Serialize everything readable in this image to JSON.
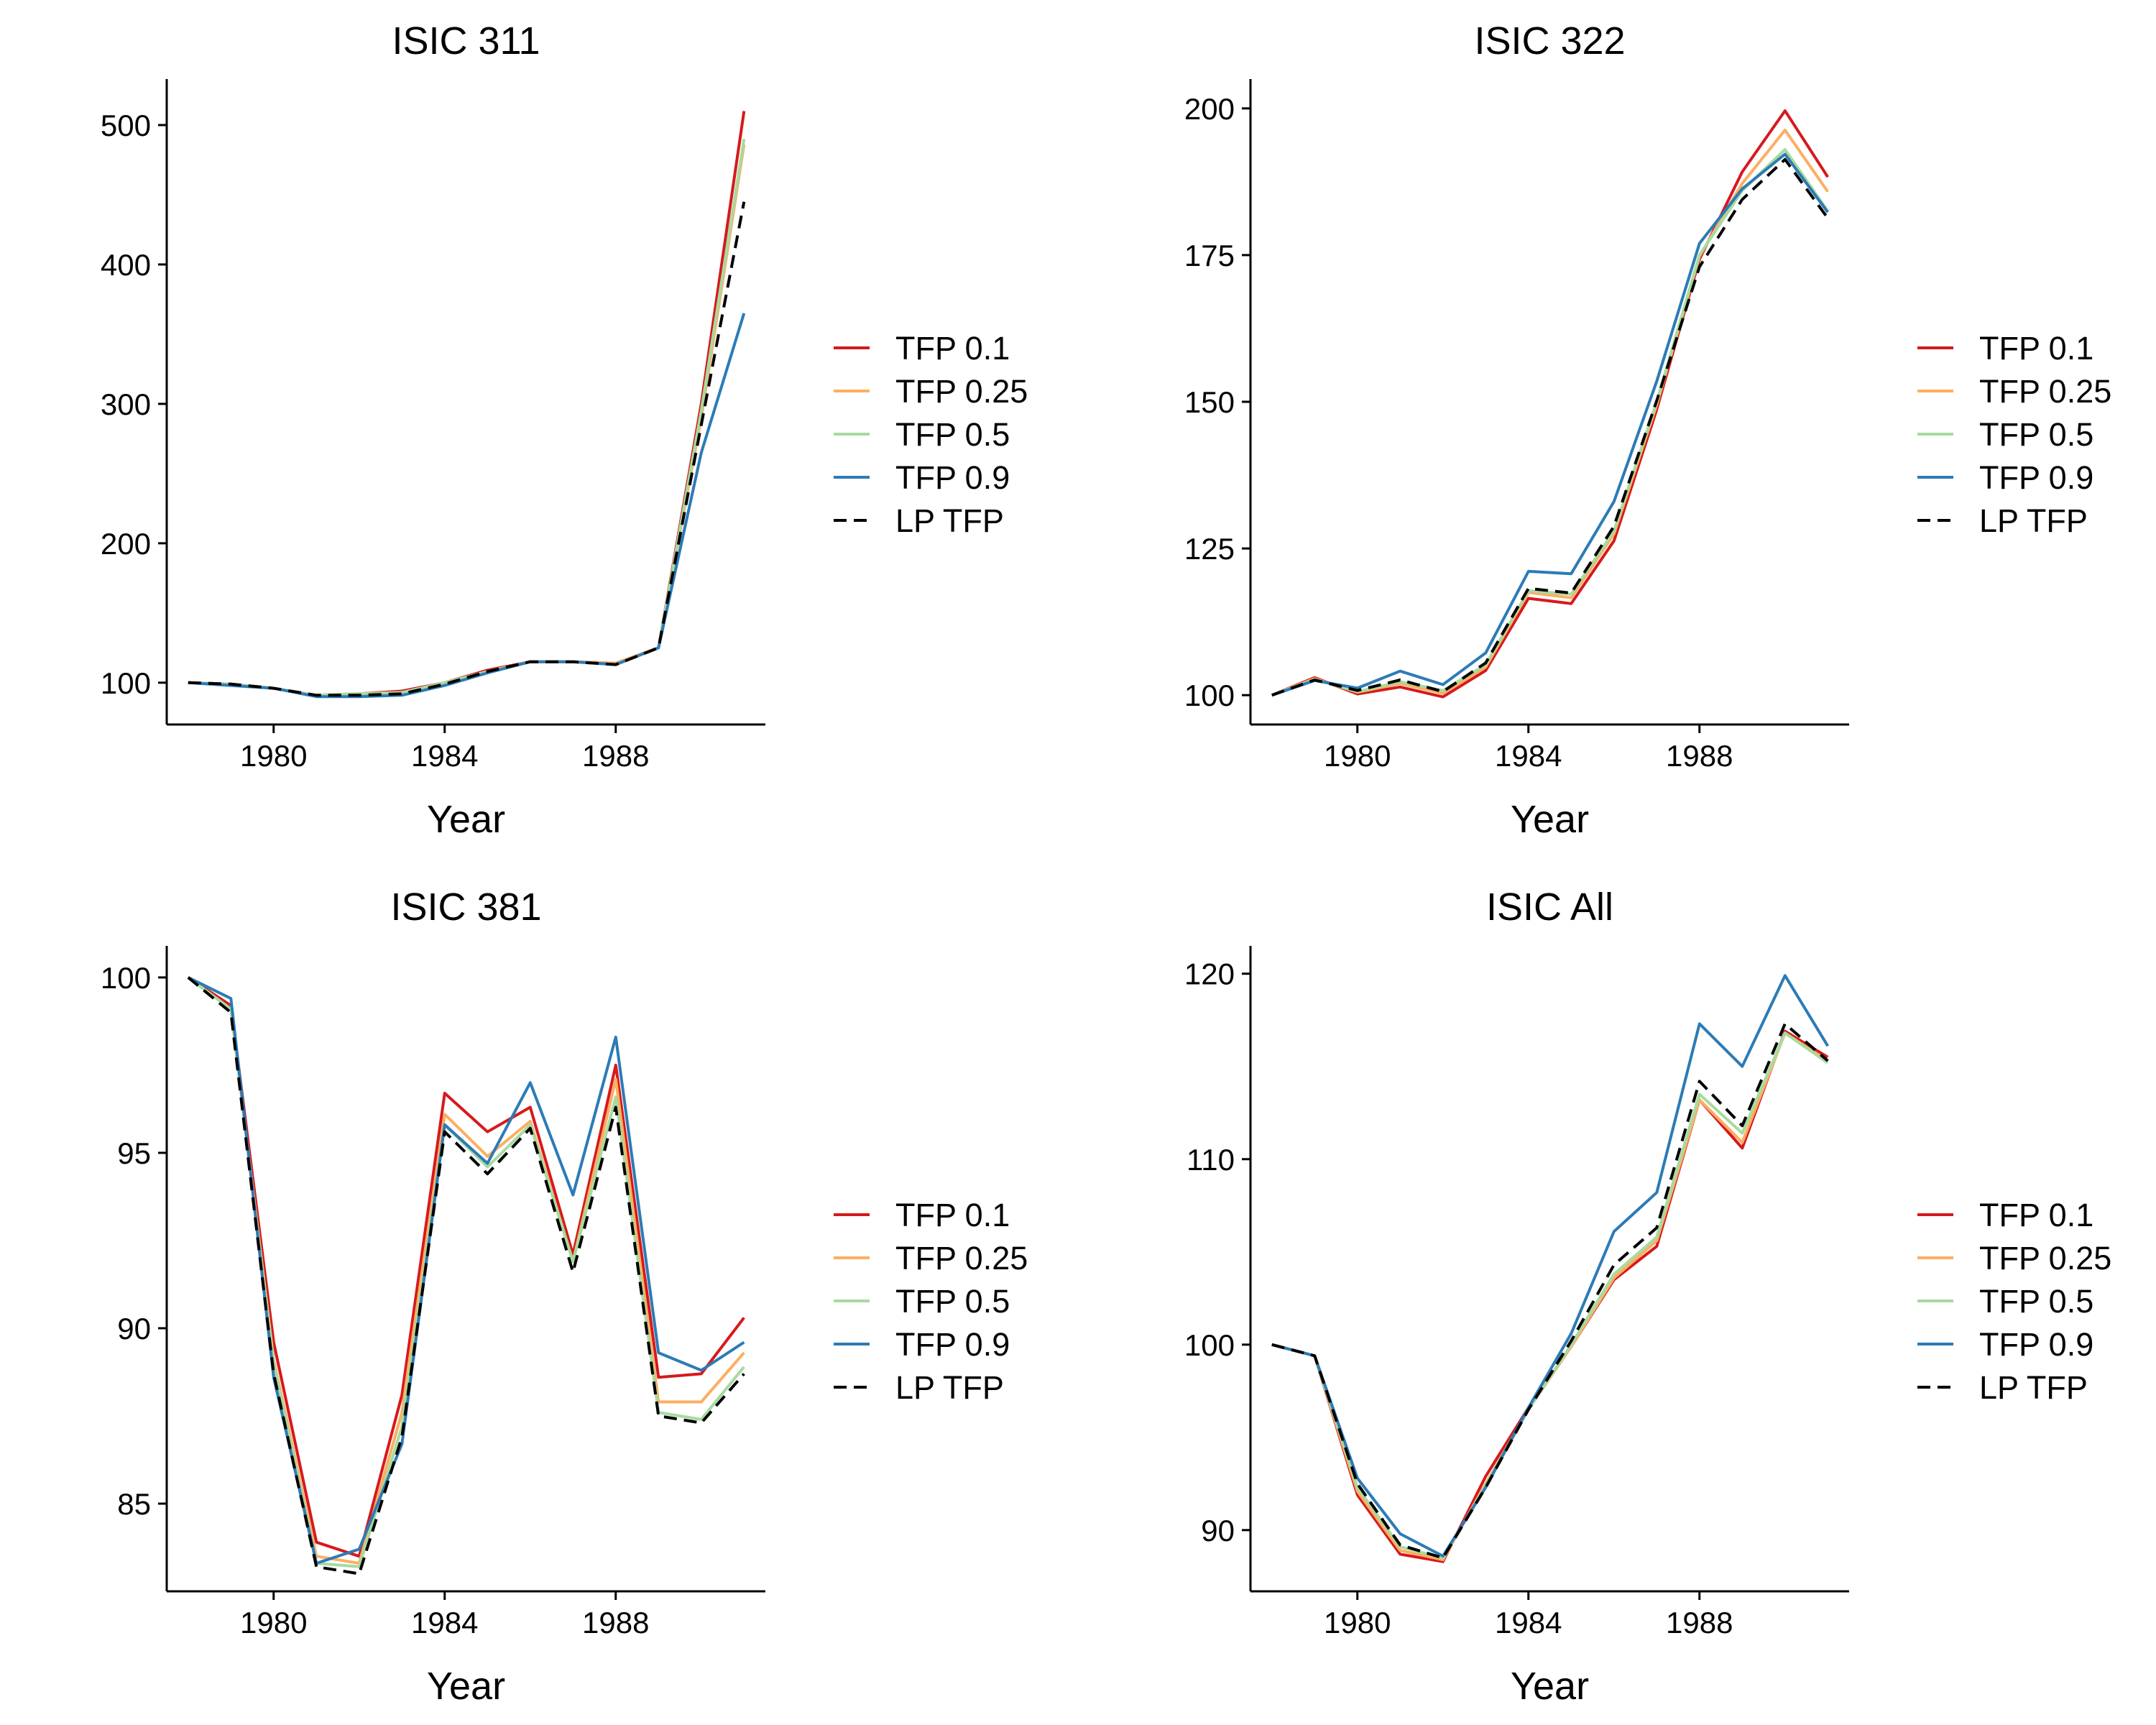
{
  "chart_data": [
    {
      "type": "line",
      "title": "ISIC 311",
      "xlabel": "Year",
      "ylabel": "",
      "xlim": [
        1977.5,
        1991.5
      ],
      "ylim": [
        70,
        533
      ],
      "xticks": [
        1980,
        1984,
        1988
      ],
      "yticks": [
        100,
        200,
        300,
        400,
        500
      ],
      "legend_position": "right",
      "grid": false,
      "x": [
        1978,
        1979,
        1980,
        1981,
        1982,
        1983,
        1984,
        1985,
        1986,
        1987,
        1988,
        1989,
        1990,
        1991
      ],
      "series": [
        {
          "name": "TFP 0.1",
          "color": "#d7191c",
          "dash": "solid",
          "values": [
            100,
            99,
            96,
            91,
            92,
            94,
            100,
            109,
            115,
            115,
            114,
            125,
            300,
            510
          ]
        },
        {
          "name": "TFP 0.25",
          "color": "#fdae61",
          "dash": "solid",
          "values": [
            100,
            99,
            96,
            91,
            92,
            93,
            100,
            108,
            115,
            115,
            114,
            125,
            290,
            486
          ]
        },
        {
          "name": "TFP 0.5",
          "color": "#a6dba0",
          "dash": "solid",
          "values": [
            100,
            99,
            96,
            91,
            92,
            93,
            100,
            108,
            115,
            115,
            113,
            125,
            295,
            490
          ]
        },
        {
          "name": "TFP 0.9",
          "color": "#2c7bb6",
          "dash": "solid",
          "values": [
            100,
            98,
            96,
            90,
            90,
            91,
            98,
            107,
            115,
            115,
            113,
            125,
            265,
            365
          ]
        },
        {
          "name": "LP TFP",
          "color": "#000000",
          "dash": "dashed",
          "values": [
            100,
            99,
            96,
            91,
            91,
            92,
            99,
            108,
            115,
            115,
            113,
            125,
            285,
            445
          ]
        }
      ]
    },
    {
      "type": "line",
      "title": "ISIC 322",
      "xlabel": "Year",
      "ylabel": "",
      "xlim": [
        1977.5,
        1991.5
      ],
      "ylim": [
        95,
        205
      ],
      "xticks": [
        1980,
        1984,
        1988
      ],
      "yticks": [
        100,
        125,
        150,
        175,
        200
      ],
      "legend_position": "right",
      "grid": false,
      "x": [
        1978,
        1979,
        1980,
        1981,
        1982,
        1983,
        1984,
        1985,
        1986,
        1987,
        1988,
        1989,
        1990,
        1991
      ],
      "series": [
        {
          "name": "TFP 0.1",
          "color": "#d7191c",
          "dash": "solid",
          "values": [
            100,
            103,
            100.2,
            101.4,
            99.7,
            104.2,
            116.5,
            115.6,
            126.3,
            148.7,
            174.3,
            189.2,
            199.6,
            188.3
          ]
        },
        {
          "name": "TFP 0.25",
          "color": "#fdae61",
          "dash": "solid",
          "values": [
            100,
            102.8,
            100.5,
            102,
            100.3,
            104.8,
            117.5,
            116.6,
            127.5,
            149.5,
            174.8,
            187.2,
            196.3,
            185.8
          ]
        },
        {
          "name": "TFP 0.5",
          "color": "#a6dba0",
          "dash": "solid",
          "values": [
            100,
            102.7,
            100.6,
            102.3,
            100.8,
            105.2,
            117.8,
            117.2,
            128,
            150,
            175,
            186,
            193,
            182.5
          ]
        },
        {
          "name": "TFP 0.9",
          "color": "#2c7bb6",
          "dash": "solid",
          "values": [
            100,
            102.5,
            101.2,
            104.1,
            101.8,
            107.2,
            121.1,
            120.7,
            133,
            153.5,
            177,
            186.3,
            192.2,
            182.3
          ]
        },
        {
          "name": "LP TFP",
          "color": "#000000",
          "dash": "dashed",
          "values": [
            100,
            102.6,
            100.8,
            102.6,
            100.6,
            105.5,
            118.2,
            117.4,
            128.8,
            150.2,
            173,
            184.5,
            191.3,
            181.3
          ]
        }
      ]
    },
    {
      "type": "line",
      "title": "ISIC 381",
      "xlabel": "Year",
      "ylabel": "",
      "xlim": [
        1977.5,
        1991.5
      ],
      "ylim": [
        82.5,
        100.9
      ],
      "xticks": [
        1980,
        1984,
        1988
      ],
      "yticks": [
        85,
        90,
        95,
        100
      ],
      "legend_position": "right",
      "grid": false,
      "x": [
        1978,
        1979,
        1980,
        1981,
        1982,
        1983,
        1984,
        1985,
        1986,
        1987,
        1988,
        1989,
        1990,
        1991
      ],
      "series": [
        {
          "name": "TFP 0.1",
          "color": "#d7191c",
          "dash": "solid",
          "values": [
            100,
            99.2,
            89.6,
            83.9,
            83.5,
            88.1,
            96.7,
            95.6,
            96.3,
            92.1,
            97.5,
            88.6,
            88.7,
            90.3
          ]
        },
        {
          "name": "TFP 0.25",
          "color": "#fdae61",
          "dash": "solid",
          "values": [
            100,
            99.1,
            89.1,
            83.5,
            83.3,
            87.6,
            96.1,
            94.9,
            95.9,
            91.9,
            97.1,
            87.9,
            87.9,
            89.3
          ]
        },
        {
          "name": "TFP 0.5",
          "color": "#a6dba0",
          "dash": "solid",
          "values": [
            100,
            99.1,
            89,
            83.3,
            83.2,
            87.2,
            95.8,
            94.6,
            95.8,
            91.9,
            96.6,
            87.6,
            87.4,
            88.9
          ]
        },
        {
          "name": "TFP 0.9",
          "color": "#2c7bb6",
          "dash": "solid",
          "values": [
            100,
            99.4,
            88.6,
            83.3,
            83.7,
            86.7,
            95.8,
            94.7,
            97,
            93.8,
            98.3,
            89.3,
            88.8,
            89.6
          ]
        },
        {
          "name": "LP TFP",
          "color": "#000000",
          "dash": "dashed",
          "values": [
            100,
            99,
            88.7,
            83.2,
            83,
            86.9,
            95.6,
            94.4,
            95.7,
            91.6,
            96.3,
            87.5,
            87.3,
            88.7
          ]
        }
      ]
    },
    {
      "type": "line",
      "title": "ISIC All",
      "xlabel": "Year",
      "ylabel": "",
      "xlim": [
        1977.5,
        1991.5
      ],
      "ylim": [
        86.7,
        121.5
      ],
      "xticks": [
        1980,
        1984,
        1988
      ],
      "yticks": [
        90,
        100,
        110,
        120
      ],
      "legend_position": "right",
      "grid": false,
      "x": [
        1978,
        1979,
        1980,
        1981,
        1982,
        1983,
        1984,
        1985,
        1986,
        1987,
        1988,
        1989,
        1990,
        1991
      ],
      "series": [
        {
          "name": "TFP 0.1",
          "color": "#d7191c",
          "dash": "solid",
          "values": [
            100,
            99.4,
            91.9,
            88.7,
            88.3,
            92.9,
            96.6,
            99.9,
            103.5,
            105.3,
            113.2,
            110.6,
            116.9,
            115.5
          ]
        },
        {
          "name": "TFP 0.25",
          "color": "#fdae61",
          "dash": "solid",
          "values": [
            100,
            99.4,
            92.1,
            88.9,
            88.4,
            92.5,
            96.5,
            99.9,
            103.6,
            105.6,
            113.2,
            110.9,
            116.8,
            115.3
          ]
        },
        {
          "name": "TFP 0.5",
          "color": "#a6dba0",
          "dash": "solid",
          "values": [
            100,
            99.4,
            92.3,
            89.1,
            88.5,
            92.4,
            96.5,
            100,
            103.8,
            105.8,
            113.5,
            111.4,
            116.8,
            115.2
          ]
        },
        {
          "name": "TFP 0.9",
          "color": "#2c7bb6",
          "dash": "solid",
          "values": [
            100,
            99.4,
            92.8,
            89.8,
            88.6,
            92.3,
            96.6,
            100.6,
            106.1,
            108.2,
            117.3,
            115,
            119.9,
            116.1
          ]
        },
        {
          "name": "LP TFP",
          "color": "#000000",
          "dash": "dashed",
          "values": [
            100,
            99.4,
            92.5,
            89.2,
            88.5,
            92.3,
            96.5,
            100.2,
            104.3,
            106.3,
            114.2,
            111.8,
            117.3,
            115.3
          ]
        }
      ]
    }
  ]
}
